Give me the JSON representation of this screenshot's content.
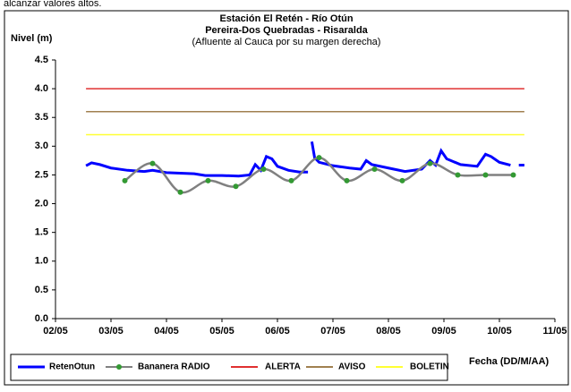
{
  "header_text": "alcanzar valores altos.",
  "chart_data": {
    "type": "line",
    "title": "Estación El Retén - Río Otún",
    "subtitle": "Pereira-Dos Quebradas - Risaralda",
    "note": "(Afluente al Cauca por su margen derecha)",
    "y_label": "Nivel (m)",
    "x_label": "Fecha (DD/M/AA)",
    "xlim": [
      2,
      11
    ],
    "xticks": [
      {
        "value": 2,
        "label": "02/05"
      },
      {
        "value": 3,
        "label": "03/05"
      },
      {
        "value": 4,
        "label": "04/05"
      },
      {
        "value": 5,
        "label": "05/05"
      },
      {
        "value": 6,
        "label": "06/05"
      },
      {
        "value": 7,
        "label": "07/05"
      },
      {
        "value": 8,
        "label": "08/05"
      },
      {
        "value": 9,
        "label": "09/05"
      },
      {
        "value": 10,
        "label": "10/05"
      },
      {
        "value": 11,
        "label": "11/05"
      }
    ],
    "ylim": [
      0,
      4.5
    ],
    "yticks": [
      {
        "value": 0,
        "label": "0.0"
      },
      {
        "value": 0.5,
        "label": "0.5"
      },
      {
        "value": 1,
        "label": "1.0"
      },
      {
        "value": 1.5,
        "label": "1.5"
      },
      {
        "value": 2,
        "label": "2.0"
      },
      {
        "value": 2.5,
        "label": "2.5"
      },
      {
        "value": 3,
        "label": "3.0"
      },
      {
        "value": 3.5,
        "label": "3.5"
      },
      {
        "value": 4,
        "label": "4.0"
      },
      {
        "value": 4.5,
        "label": "4.5"
      }
    ],
    "series": [
      {
        "name": "RetenOtun",
        "color": "#0000ff",
        "marker": false,
        "smooth": false,
        "x": [
          2.55,
          2.65,
          2.8,
          3.0,
          3.3,
          3.6,
          3.75,
          4.0,
          4.5,
          4.7,
          5.0,
          5.3,
          5.5,
          5.6,
          5.7,
          5.8,
          5.9,
          6.0,
          6.2,
          6.4,
          6.55,
          6.6,
          6.62,
          6.67,
          6.75,
          7.0,
          7.3,
          7.5,
          7.6,
          7.7,
          8.0,
          8.3,
          8.6,
          8.75,
          8.85,
          8.95,
          9.05,
          9.3,
          9.6,
          9.75,
          9.85,
          10.0,
          10.2,
          10.28,
          10.35,
          10.45
        ],
        "values": [
          2.66,
          2.71,
          2.68,
          2.62,
          2.58,
          2.56,
          2.58,
          2.54,
          2.52,
          2.49,
          2.49,
          2.48,
          2.5,
          2.68,
          2.58,
          2.82,
          2.78,
          2.65,
          2.58,
          2.55,
          2.55,
          null,
          3.08,
          2.8,
          2.72,
          2.66,
          2.62,
          2.6,
          2.75,
          2.68,
          2.62,
          2.56,
          2.6,
          2.75,
          2.67,
          2.92,
          2.78,
          2.68,
          2.65,
          2.86,
          2.82,
          2.72,
          2.67,
          null,
          2.67,
          2.67
        ]
      },
      {
        "name": "Bananera RADIO",
        "color": "#808080",
        "marker_color": "#339933",
        "marker": true,
        "smooth": true,
        "x": [
          3.25,
          3.75,
          4.25,
          4.75,
          5.25,
          5.75,
          6.25,
          6.75,
          7.25,
          7.75,
          8.25,
          8.75,
          9.25,
          9.75,
          10.25
        ],
        "values": [
          2.4,
          2.7,
          2.2,
          2.4,
          2.3,
          2.6,
          2.4,
          2.8,
          2.4,
          2.6,
          2.4,
          2.7,
          2.5,
          2.5,
          2.5
        ]
      },
      {
        "name": "ALERTA",
        "color": "#e03030",
        "marker": false,
        "smooth": false,
        "x": [
          2.55,
          10.45
        ],
        "values": [
          4.0,
          4.0
        ]
      },
      {
        "name": "AVISO",
        "color": "#a08050",
        "marker": false,
        "smooth": false,
        "x": [
          2.55,
          10.45
        ],
        "values": [
          3.6,
          3.6
        ]
      },
      {
        "name": "BOLETIN",
        "color": "#ffff33",
        "marker": false,
        "smooth": false,
        "x": [
          2.55,
          10.45
        ],
        "values": [
          3.2,
          3.2
        ]
      }
    ]
  }
}
